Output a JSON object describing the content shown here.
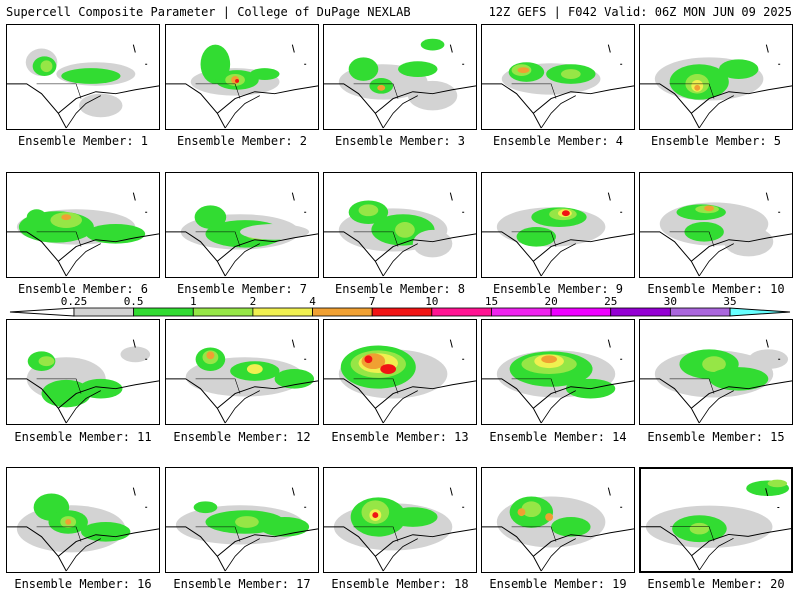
{
  "header": {
    "title": "Supercell Composite Parameter | College of DuPage NEXLAB",
    "run_info": "12Z GEFS | F042 Valid: 06Z MON JUN 09 2025"
  },
  "colorbar": {
    "ticks": [
      "0.25",
      "0.5",
      "1",
      "2",
      "4",
      "7",
      "10",
      "15",
      "20",
      "25",
      "30",
      "35"
    ],
    "colors": [
      "#d3d3d3",
      "#32dc32",
      "#96e646",
      "#f0f050",
      "#f0a032",
      "#f01414",
      "#ff1493",
      "#ee22ee",
      "#ee00ff",
      "#9400d3",
      "#aa66dd",
      "#66ffff"
    ]
  },
  "panel_colors": {
    "gray": "#d3d3d3",
    "green": "#32dc32",
    "lime": "#96e646",
    "yellow": "#f0f050",
    "orange": "#f0a032",
    "red": "#f01414"
  },
  "members": [
    {
      "label": "Ensemble Member: 1"
    },
    {
      "label": "Ensemble Member: 2"
    },
    {
      "label": "Ensemble Member: 3"
    },
    {
      "label": "Ensemble Member: 4"
    },
    {
      "label": "Ensemble Member: 5"
    },
    {
      "label": "Ensemble Member: 6"
    },
    {
      "label": "Ensemble Member: 7"
    },
    {
      "label": "Ensemble Member: 8"
    },
    {
      "label": "Ensemble Member: 9"
    },
    {
      "label": "Ensemble Member: 10"
    },
    {
      "label": "Ensemble Member: 11"
    },
    {
      "label": "Ensemble Member: 12"
    },
    {
      "label": "Ensemble Member: 13"
    },
    {
      "label": "Ensemble Member: 14"
    },
    {
      "label": "Ensemble Member: 15"
    },
    {
      "label": "Ensemble Member: 16"
    },
    {
      "label": "Ensemble Member: 17"
    },
    {
      "label": "Ensemble Member: 18"
    },
    {
      "label": "Ensemble Member: 19"
    },
    {
      "label": "Ensemble Member: 20"
    }
  ]
}
